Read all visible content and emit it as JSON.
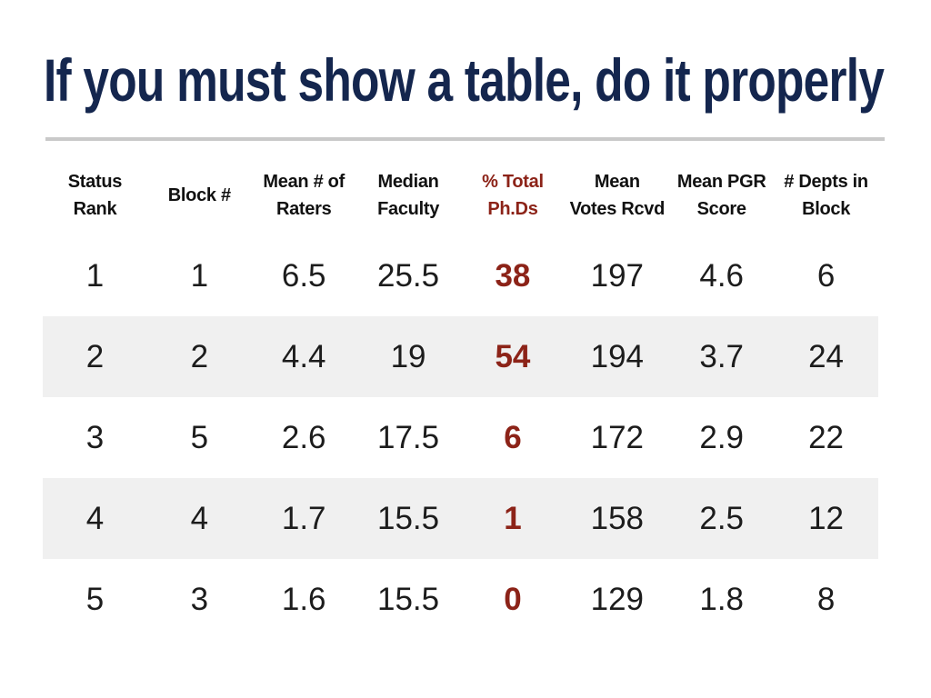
{
  "slide": {
    "title": "If you must show a table, do it properly"
  },
  "colors": {
    "title": "#14264E",
    "accent_red": "#8C2318",
    "row_stripe": "#F0F0F0",
    "divider": "#C9C9C9",
    "header_text": "#111111",
    "body_text": "#1C1C1C"
  },
  "table": {
    "columns": [
      {
        "id": "status-rank",
        "label": "Status\nRank",
        "accent": false
      },
      {
        "id": "block-num",
        "label": "Block #",
        "accent": false
      },
      {
        "id": "mean-raters",
        "label": "Mean # of\nRaters",
        "accent": false
      },
      {
        "id": "median-faculty",
        "label": "Median\nFaculty",
        "accent": false
      },
      {
        "id": "pct-total-phds",
        "label": "% Total\nPh.Ds",
        "accent": true
      },
      {
        "id": "mean-votes",
        "label": "Mean\nVotes Rcvd",
        "accent": false
      },
      {
        "id": "mean-pgr-score",
        "label": "Mean PGR\nScore",
        "accent": false
      },
      {
        "id": "depts-in-block",
        "label": "# Depts in\nBlock",
        "accent": false
      }
    ],
    "rows": [
      [
        "1",
        "1",
        "6.5",
        "25.5",
        "38",
        "197",
        "4.6",
        "6"
      ],
      [
        "2",
        "2",
        "4.4",
        "19",
        "54",
        "194",
        "3.7",
        "24"
      ],
      [
        "3",
        "5",
        "2.6",
        "17.5",
        "6",
        "172",
        "2.9",
        "22"
      ],
      [
        "4",
        "4",
        "1.7",
        "15.5",
        "1",
        "158",
        "2.5",
        "12"
      ],
      [
        "5",
        "3",
        "1.6",
        "15.5",
        "0",
        "129",
        "1.8",
        "8"
      ]
    ]
  },
  "chart_data": {
    "type": "table",
    "title": "If you must show a table, do it properly",
    "columns": [
      "Status Rank",
      "Block #",
      "Mean # of Raters",
      "Median Faculty",
      "% Total Ph.Ds",
      "Mean Votes Rcvd",
      "Mean PGR Score",
      "# Depts in Block"
    ],
    "rows": [
      [
        1,
        1,
        6.5,
        25.5,
        38,
        197,
        4.6,
        6
      ],
      [
        2,
        2,
        4.4,
        19,
        54,
        194,
        3.7,
        24
      ],
      [
        3,
        5,
        2.6,
        17.5,
        6,
        172,
        2.9,
        22
      ],
      [
        4,
        4,
        1.7,
        15.5,
        1,
        158,
        2.5,
        12
      ],
      [
        5,
        3,
        1.6,
        15.5,
        0,
        129,
        1.8,
        8
      ]
    ],
    "highlighted_column": "% Total Ph.Ds"
  }
}
